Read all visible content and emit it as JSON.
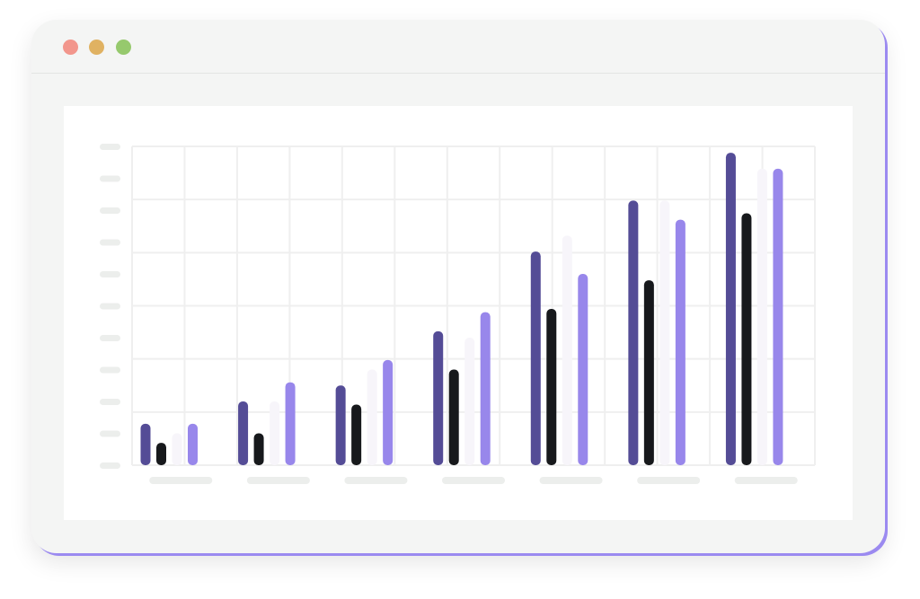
{
  "window": {
    "controls": [
      {
        "name": "close-button",
        "color": "#f2968c"
      },
      {
        "name": "minimize-button",
        "color": "#e0b262"
      },
      {
        "name": "zoom-button",
        "color": "#96c96d"
      }
    ]
  },
  "colors": {
    "window_bg": "#f4f5f4",
    "panel_bg": "#ffffff",
    "grid": "#efefef",
    "placeholder": "#eceeec",
    "accent_border": "#9b8af0"
  },
  "chart_data": {
    "type": "bar",
    "title": "",
    "xlabel": "",
    "ylabel": "",
    "grid": true,
    "legend": "none",
    "categories": [
      "",
      "",
      "",
      "",
      "",
      "",
      ""
    ],
    "ylim": [
      0,
      100
    ],
    "y_tick_count": 11,
    "series": [
      {
        "color": "#544c96",
        "values": [
          13,
          20,
          25,
          42,
          67,
          83,
          98
        ]
      },
      {
        "color": "#17191c",
        "values": [
          7,
          10,
          19,
          30,
          49,
          58,
          79
        ]
      },
      {
        "color": "#f7f5fa",
        "values": [
          10,
          20,
          30,
          40,
          72,
          83,
          93
        ]
      },
      {
        "color": "#9887eb",
        "values": [
          13,
          26,
          33,
          48,
          60,
          77,
          93
        ]
      }
    ]
  }
}
